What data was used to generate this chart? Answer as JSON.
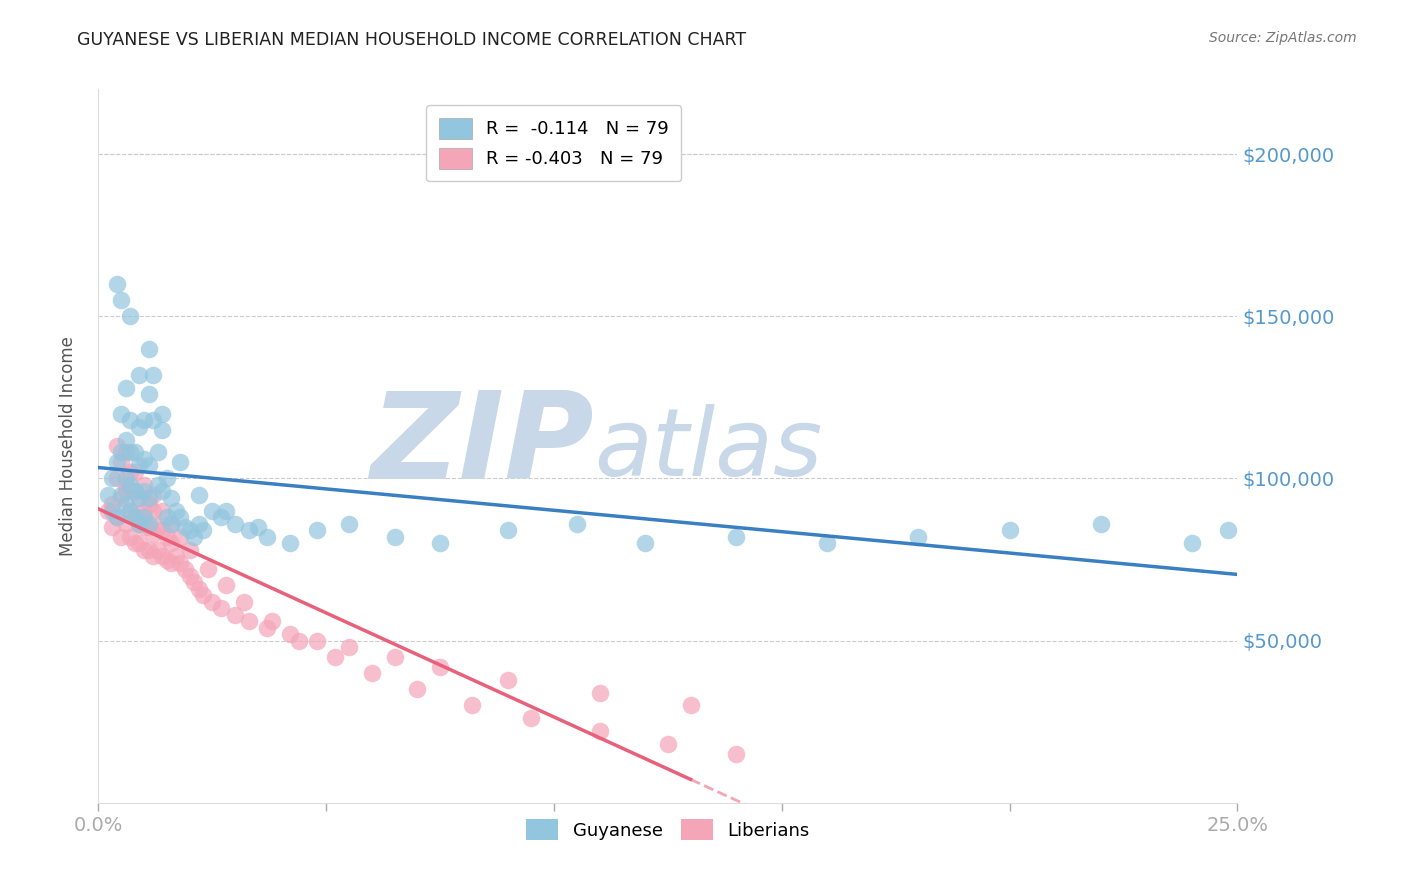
{
  "title": "GUYANESE VS LIBERIAN MEDIAN HOUSEHOLD INCOME CORRELATION CHART",
  "source": "Source: ZipAtlas.com",
  "ylabel": "Median Household Income",
  "xlim": [
    0.0,
    0.25
  ],
  "ylim": [
    0,
    220000
  ],
  "yticks": [
    0,
    50000,
    100000,
    150000,
    200000
  ],
  "ytick_labels": [
    "",
    "$50,000",
    "$100,000",
    "$150,000",
    "$200,000"
  ],
  "xticks": [
    0.0,
    0.05,
    0.1,
    0.15,
    0.2,
    0.25
  ],
  "xtick_labels": [
    "0.0%",
    "",
    "",
    "",
    "",
    "25.0%"
  ],
  "watermark_zip": "ZIP",
  "watermark_atlas": "atlas",
  "legend_label1": "Guyanese",
  "legend_label2": "Liberians",
  "blue_color": "#92c5de",
  "pink_color": "#f4a5b8",
  "blue_line_color": "#3a7fc1",
  "pink_line_color": "#e8607a",
  "axis_color": "#5599cc",
  "grid_color": "#cccccc",
  "watermark_color": "#c8d8e8",
  "guyanese_x": [
    0.002,
    0.003,
    0.003,
    0.004,
    0.004,
    0.005,
    0.005,
    0.005,
    0.006,
    0.006,
    0.006,
    0.006,
    0.007,
    0.007,
    0.007,
    0.007,
    0.008,
    0.008,
    0.008,
    0.009,
    0.009,
    0.009,
    0.009,
    0.01,
    0.01,
    0.01,
    0.01,
    0.011,
    0.011,
    0.011,
    0.011,
    0.012,
    0.012,
    0.013,
    0.013,
    0.014,
    0.014,
    0.015,
    0.015,
    0.016,
    0.016,
    0.017,
    0.018,
    0.019,
    0.02,
    0.021,
    0.022,
    0.023,
    0.025,
    0.027,
    0.03,
    0.033,
    0.037,
    0.042,
    0.048,
    0.055,
    0.065,
    0.075,
    0.09,
    0.105,
    0.12,
    0.14,
    0.16,
    0.18,
    0.2,
    0.22,
    0.24,
    0.248,
    0.004,
    0.005,
    0.007,
    0.009,
    0.011,
    0.014,
    0.018,
    0.022,
    0.028,
    0.035
  ],
  "guyanese_y": [
    95000,
    90000,
    100000,
    88000,
    105000,
    95000,
    108000,
    120000,
    92000,
    100000,
    112000,
    128000,
    90000,
    98000,
    108000,
    118000,
    88000,
    96000,
    108000,
    86000,
    94000,
    104000,
    116000,
    88000,
    96000,
    106000,
    118000,
    86000,
    94000,
    104000,
    140000,
    132000,
    118000,
    108000,
    98000,
    120000,
    96000,
    88000,
    100000,
    94000,
    86000,
    90000,
    88000,
    85000,
    84000,
    82000,
    86000,
    84000,
    90000,
    88000,
    86000,
    84000,
    82000,
    80000,
    84000,
    86000,
    82000,
    80000,
    84000,
    86000,
    80000,
    82000,
    80000,
    82000,
    84000,
    86000,
    80000,
    84000,
    160000,
    155000,
    150000,
    132000,
    126000,
    115000,
    105000,
    95000,
    90000,
    85000
  ],
  "liberian_x": [
    0.002,
    0.003,
    0.004,
    0.004,
    0.005,
    0.005,
    0.006,
    0.006,
    0.007,
    0.007,
    0.007,
    0.008,
    0.008,
    0.008,
    0.009,
    0.009,
    0.009,
    0.01,
    0.01,
    0.01,
    0.011,
    0.011,
    0.011,
    0.012,
    0.012,
    0.012,
    0.013,
    0.013,
    0.014,
    0.014,
    0.015,
    0.015,
    0.016,
    0.016,
    0.017,
    0.018,
    0.019,
    0.02,
    0.021,
    0.022,
    0.023,
    0.025,
    0.027,
    0.03,
    0.033,
    0.037,
    0.042,
    0.048,
    0.055,
    0.065,
    0.075,
    0.09,
    0.11,
    0.13,
    0.004,
    0.005,
    0.006,
    0.008,
    0.01,
    0.012,
    0.014,
    0.016,
    0.018,
    0.02,
    0.024,
    0.028,
    0.032,
    0.038,
    0.044,
    0.052,
    0.06,
    0.07,
    0.082,
    0.095,
    0.11,
    0.125,
    0.14,
    0.003,
    0.006,
    0.009
  ],
  "liberian_y": [
    90000,
    85000,
    88000,
    100000,
    82000,
    94000,
    86000,
    98000,
    82000,
    90000,
    102000,
    80000,
    88000,
    96000,
    80000,
    86000,
    94000,
    78000,
    85000,
    90000,
    78000,
    85000,
    92000,
    76000,
    83000,
    90000,
    78000,
    85000,
    76000,
    84000,
    75000,
    82000,
    74000,
    80000,
    76000,
    74000,
    72000,
    70000,
    68000,
    66000,
    64000,
    62000,
    60000,
    58000,
    56000,
    54000,
    52000,
    50000,
    48000,
    45000,
    42000,
    38000,
    34000,
    30000,
    110000,
    105000,
    108000,
    102000,
    98000,
    95000,
    90000,
    86000,
    82000,
    78000,
    72000,
    67000,
    62000,
    56000,
    50000,
    45000,
    40000,
    35000,
    30000,
    26000,
    22000,
    18000,
    15000,
    92000,
    96000,
    88000
  ]
}
